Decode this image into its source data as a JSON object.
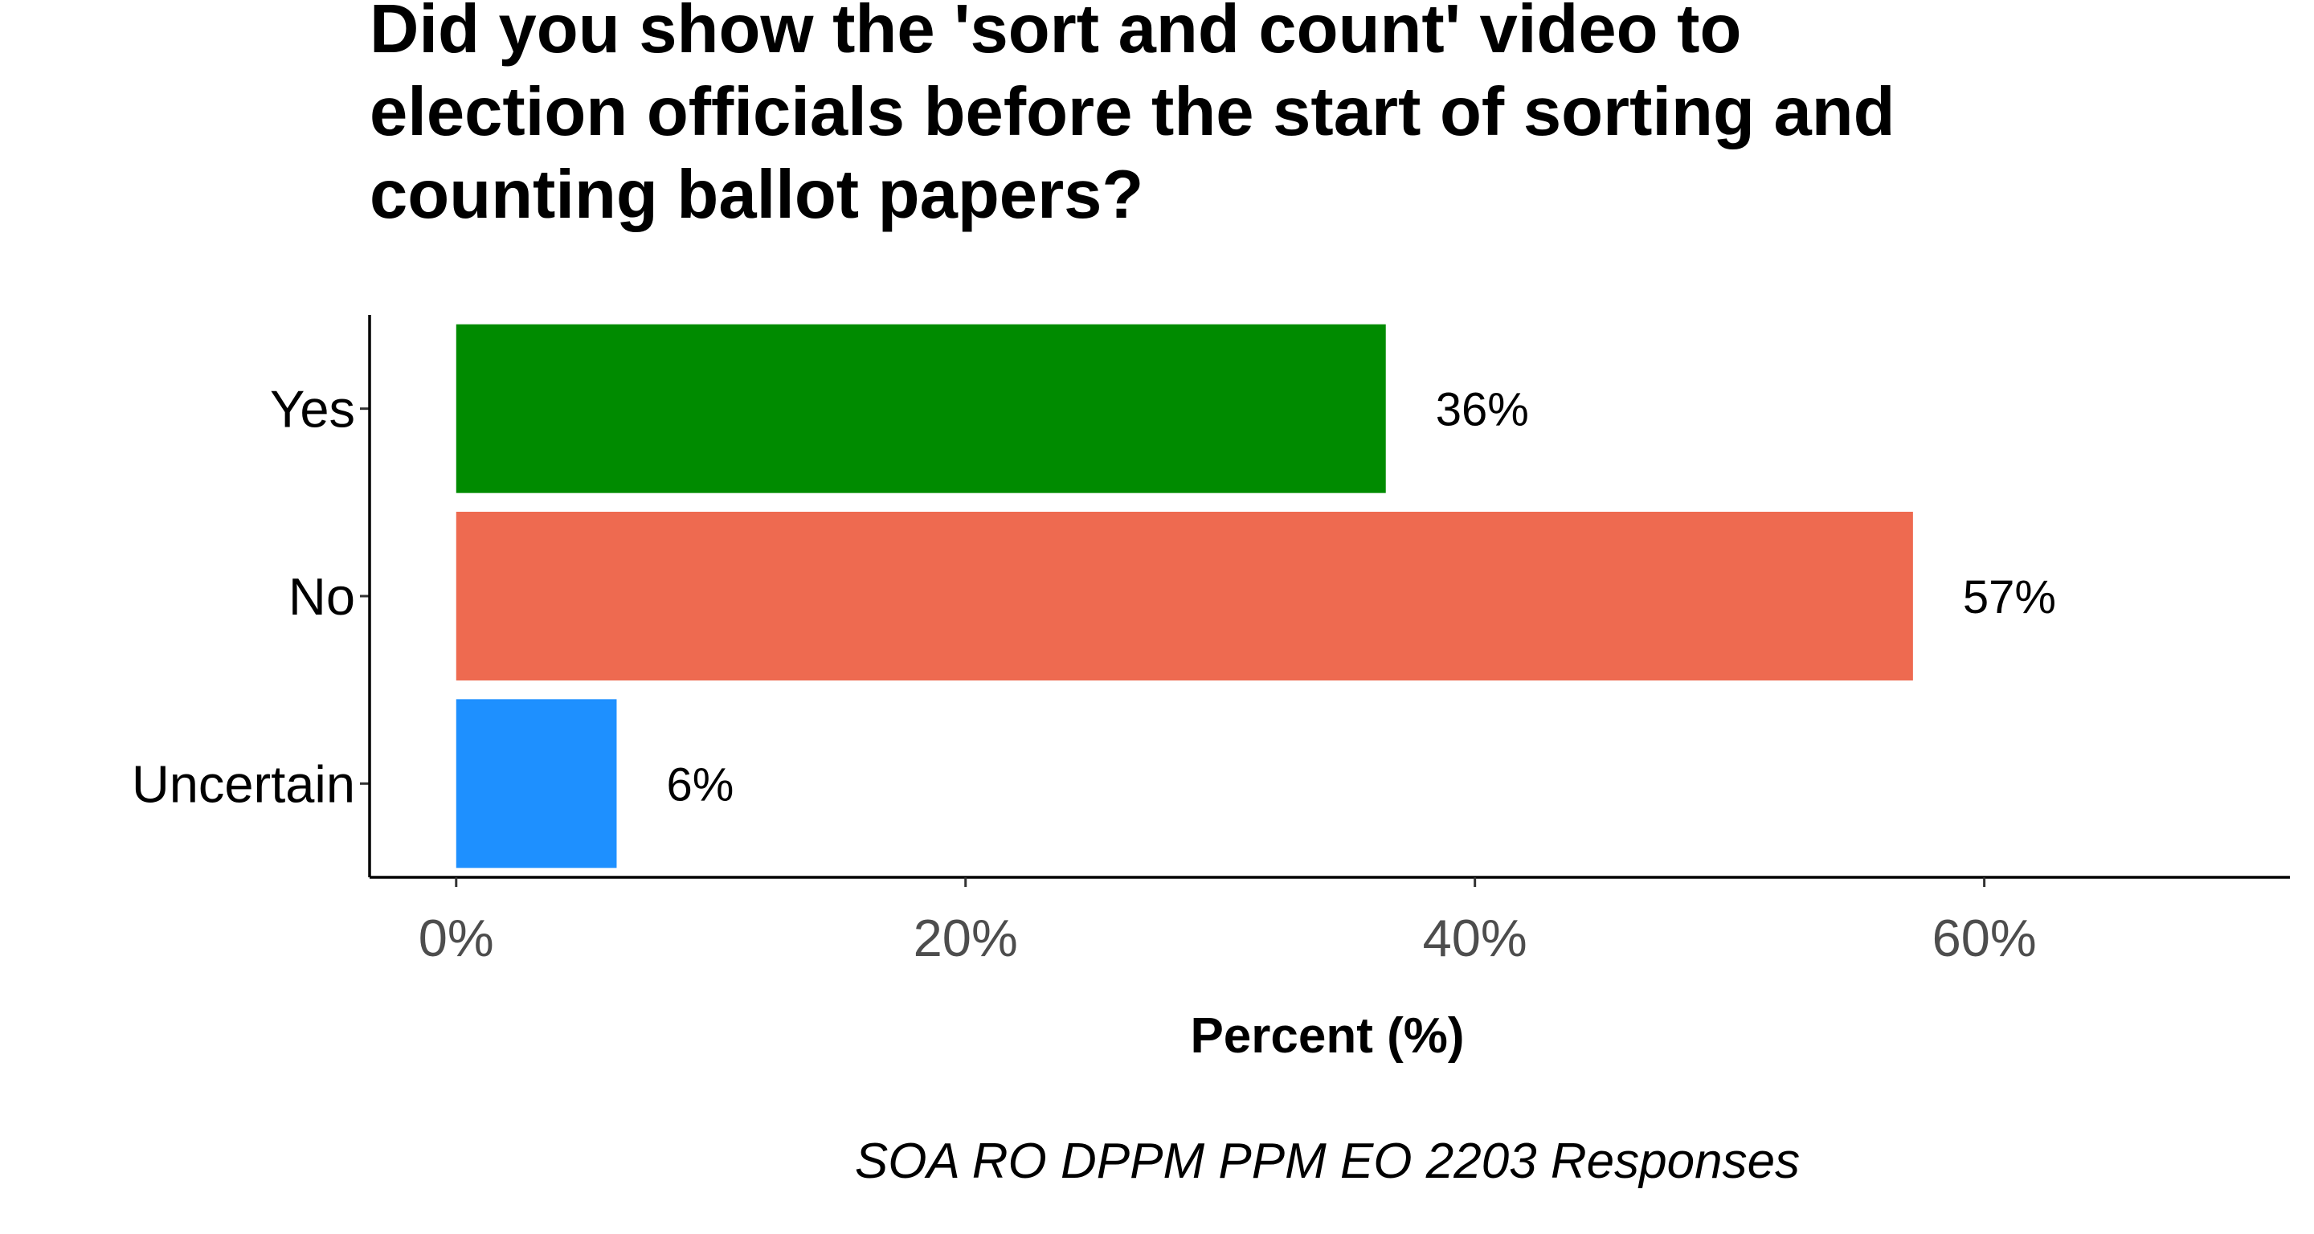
{
  "chart_data": {
    "type": "bar",
    "orientation": "horizontal",
    "title_lines": [
      "Did you show the 'sort and count' video to",
      "election officials before the start of sorting and",
      "counting ballot papers?"
    ],
    "categories": [
      "Yes",
      "No",
      "Uncertain"
    ],
    "values": [
      36.5,
      57.2,
      6.3
    ],
    "data_labels": [
      "36%",
      "57%",
      "6%"
    ],
    "colors": [
      "#008B00",
      "#EE6A50",
      "#1E90FF"
    ],
    "x_ticks": [
      0,
      20,
      40,
      60
    ],
    "x_tick_labels": [
      "0%",
      "20%",
      "40%",
      "60%"
    ],
    "xlim": [
      -3.4,
      72
    ],
    "xlabel": "Percent (%)",
    "caption": "SOA RO DPPM PPM EO 2203 Responses",
    "grid": false,
    "legend": "none"
  }
}
